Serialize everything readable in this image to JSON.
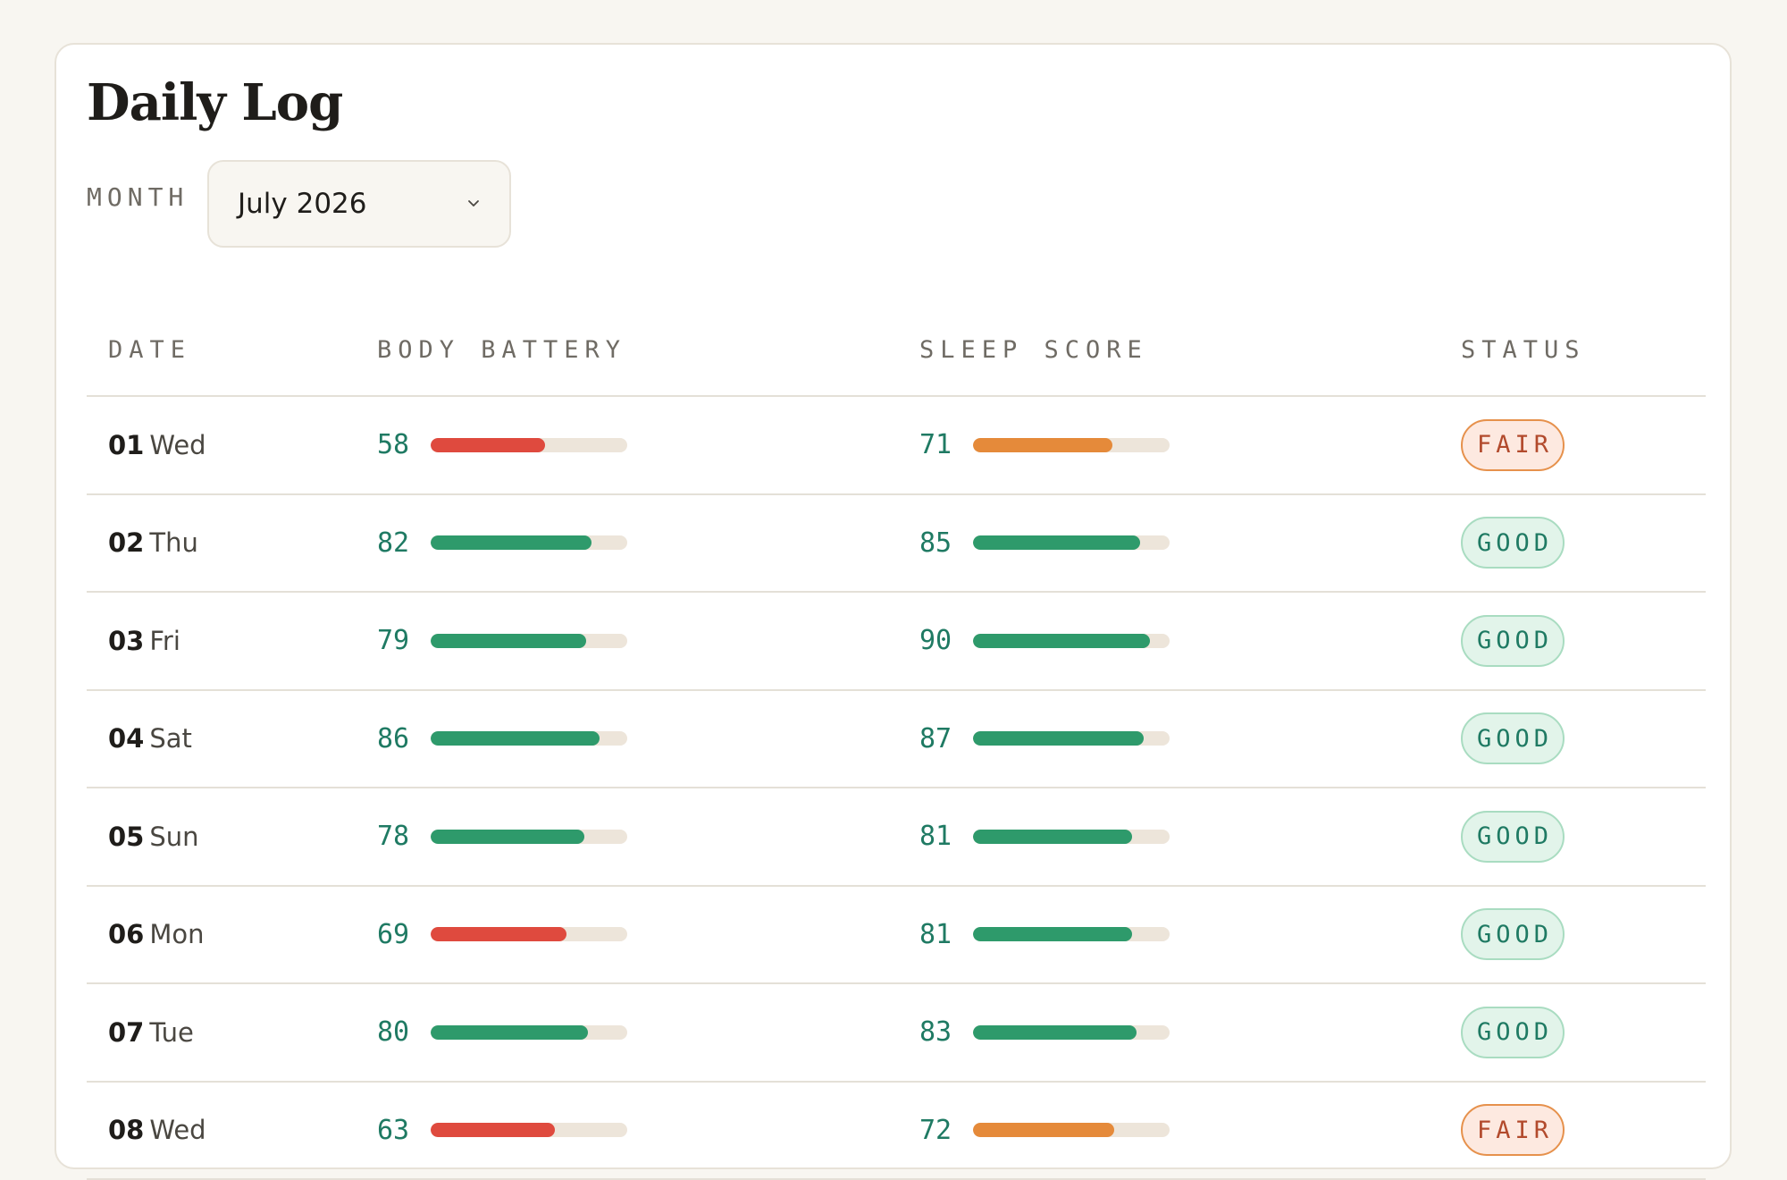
{
  "page": {
    "title": "Daily Log"
  },
  "filter": {
    "label": "MONTH",
    "selected": "July 2026"
  },
  "table": {
    "headers": {
      "date": "DATE",
      "body_battery": "BODY BATTERY",
      "sleep_score": "SLEEP SCORE",
      "status": "STATUS"
    },
    "rows": [
      {
        "date": "01",
        "day": "Wed",
        "body_battery": 58,
        "sleep_score": 71,
        "status": "FAIR"
      },
      {
        "date": "02",
        "day": "Thu",
        "body_battery": 82,
        "sleep_score": 85,
        "status": "GOOD"
      },
      {
        "date": "03",
        "day": "Fri",
        "body_battery": 79,
        "sleep_score": 90,
        "status": "GOOD"
      },
      {
        "date": "04",
        "day": "Sat",
        "body_battery": 86,
        "sleep_score": 87,
        "status": "GOOD"
      },
      {
        "date": "05",
        "day": "Sun",
        "body_battery": 78,
        "sleep_score": 81,
        "status": "GOOD"
      },
      {
        "date": "06",
        "day": "Mon",
        "body_battery": 69,
        "sleep_score": 81,
        "status": "GOOD"
      },
      {
        "date": "07",
        "day": "Tue",
        "body_battery": 80,
        "sleep_score": 83,
        "status": "GOOD"
      },
      {
        "date": "08",
        "day": "Wed",
        "body_battery": 63,
        "sleep_score": 72,
        "status": "FAIR"
      }
    ]
  },
  "colors": {
    "bar_high": "#2e9a6b",
    "bar_mid": "#e58a3a",
    "bar_low": "#df4a3e",
    "bar_track": "#ede5da"
  },
  "icons": {
    "select_chevron": "chevron-down-icon"
  }
}
